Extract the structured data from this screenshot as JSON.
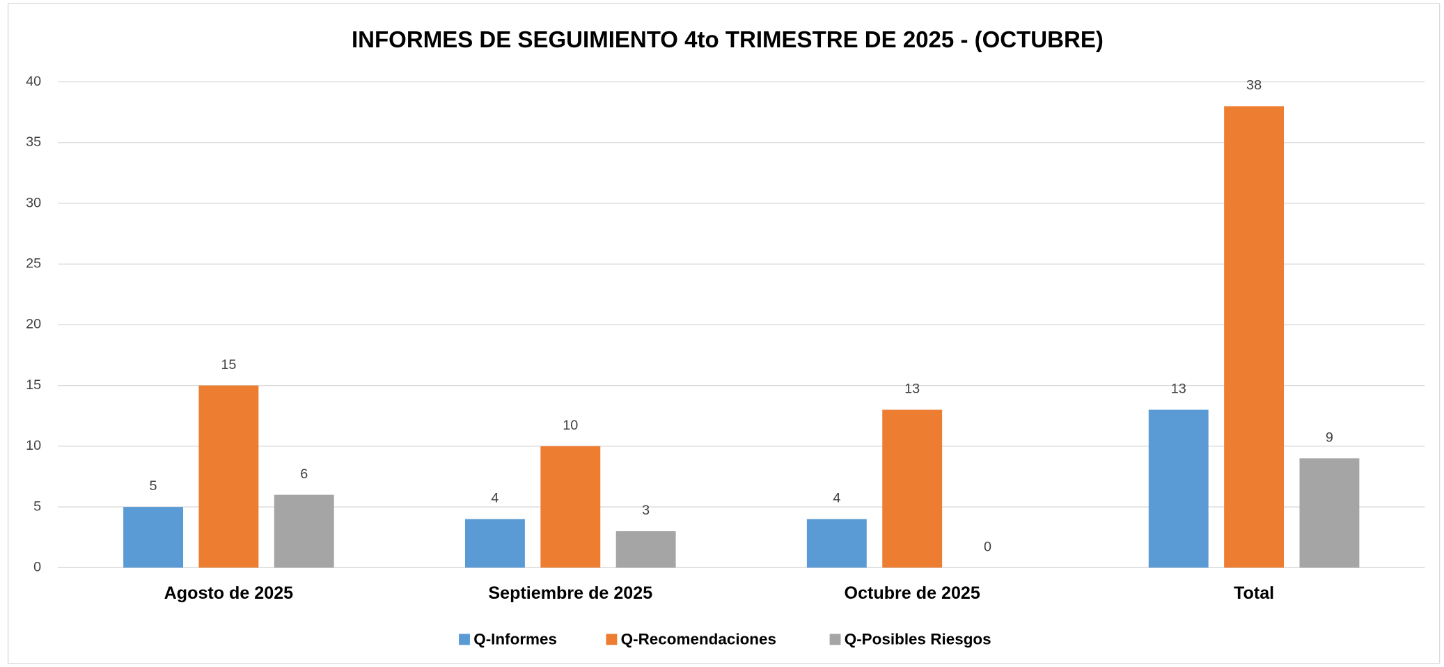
{
  "chart_data": {
    "type": "bar",
    "title": "INFORMES DE SEGUIMIENTO 4to TRIMESTRE DE 2025 - (OCTUBRE)",
    "categories": [
      "Agosto de 2025",
      "Septiembre de 2025",
      "Octubre de 2025",
      "Total"
    ],
    "series": [
      {
        "name": "Q-Informes",
        "color": "#5b9bd5",
        "values": [
          5,
          4,
          4,
          13
        ]
      },
      {
        "name": "Q-Recomendaciones",
        "color": "#ed7d31",
        "values": [
          15,
          10,
          13,
          38
        ]
      },
      {
        "name": "Q-Posibles Riesgos",
        "color": "#a5a5a5",
        "values": [
          6,
          3,
          0,
          9
        ]
      }
    ],
    "ylim": [
      0,
      40
    ],
    "yticks": [
      0,
      5,
      10,
      15,
      20,
      25,
      30,
      35,
      40
    ],
    "grid": true,
    "legend": "bottom"
  }
}
